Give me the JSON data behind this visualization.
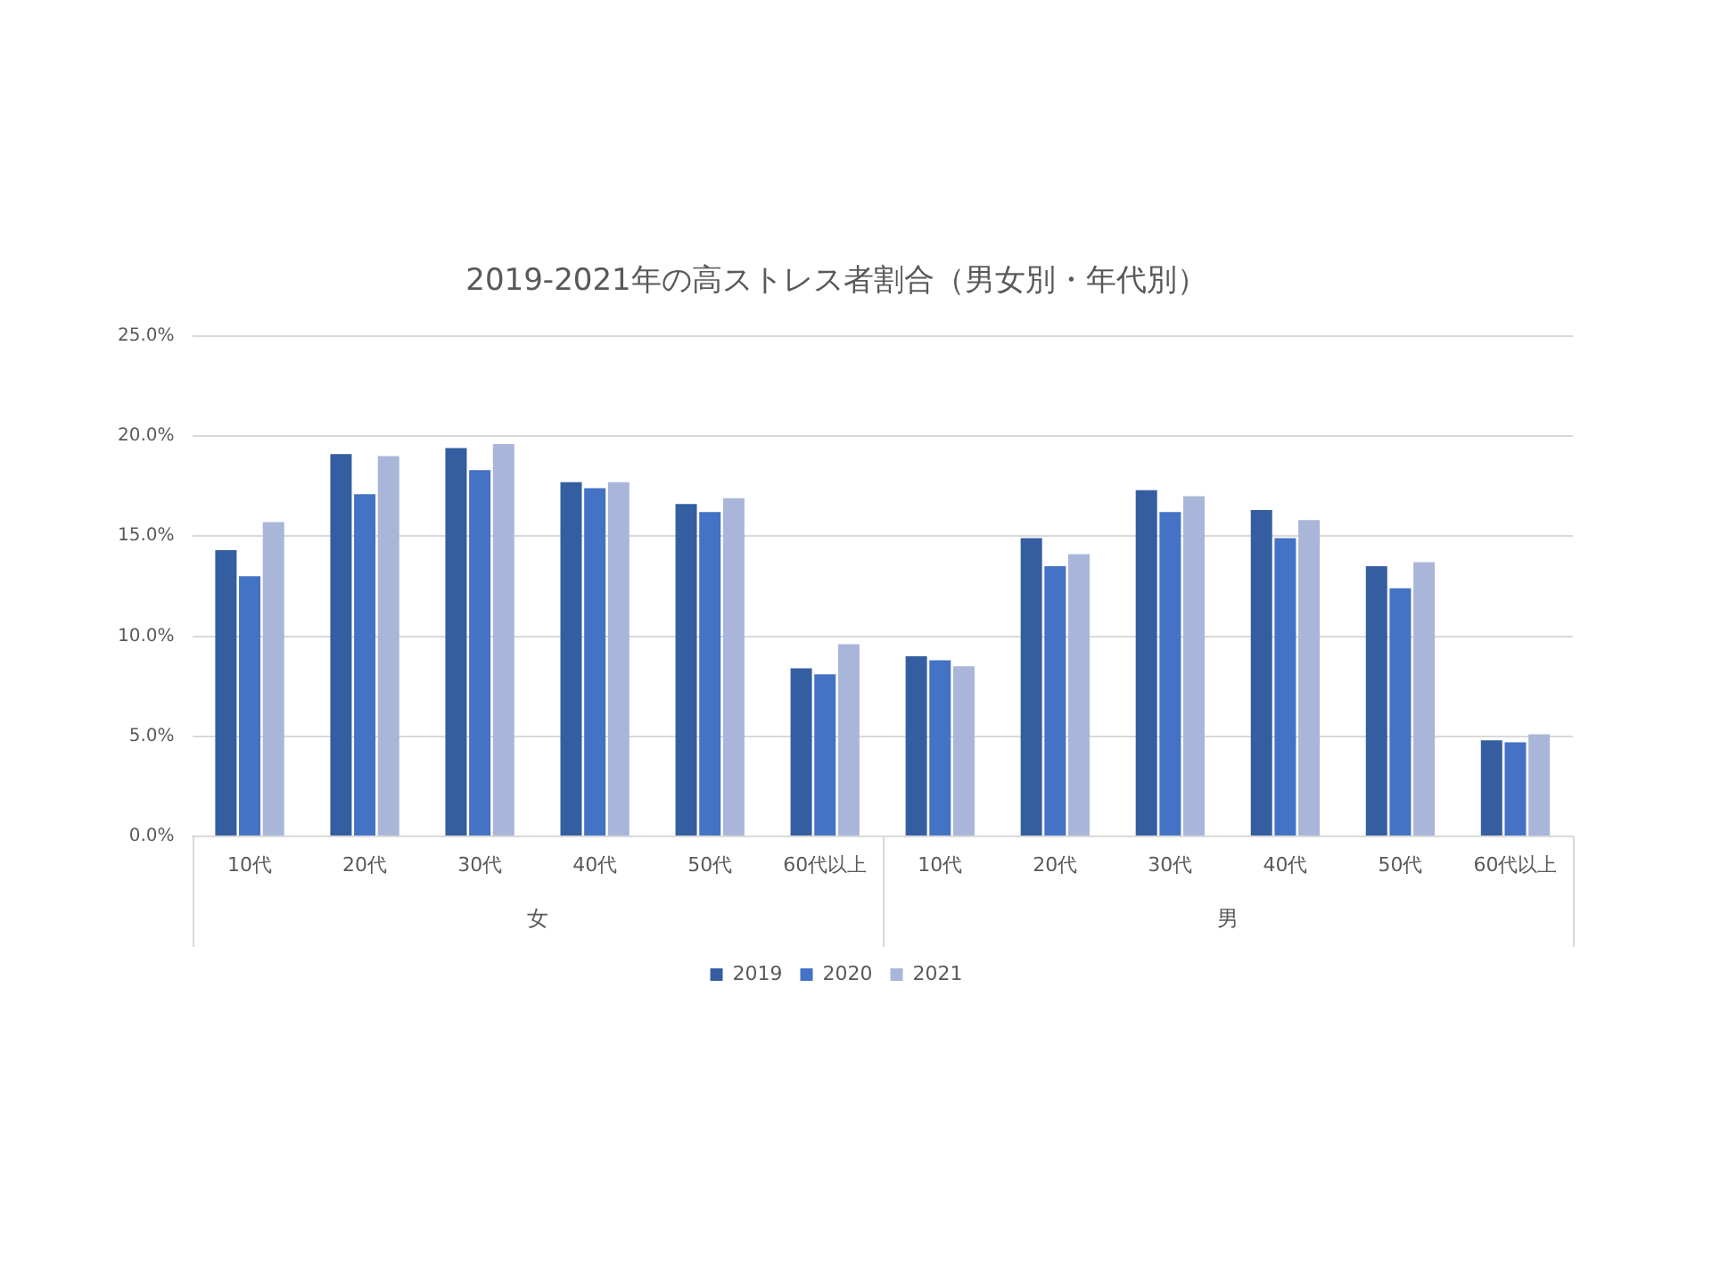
{
  "chart_data": {
    "type": "bar",
    "title": "2019-2021年の高ストレス者割合（男女別・年代別）",
    "categories": [
      "10代",
      "20代",
      "30代",
      "40代",
      "50代",
      "60代以上",
      "10代",
      "20代",
      "30代",
      "40代",
      "50代",
      "60代以上"
    ],
    "annotations": [
      "女",
      "男"
    ],
    "series": [
      {
        "name": "2019",
        "color": "#355ea0",
        "values": [
          14.3,
          19.1,
          19.4,
          17.7,
          16.6,
          8.4,
          9.0,
          14.9,
          17.3,
          16.3,
          13.5,
          4.8
        ]
      },
      {
        "name": "2020",
        "color": "#4472c4",
        "values": [
          13.0,
          17.1,
          18.3,
          17.4,
          16.2,
          8.1,
          8.8,
          13.5,
          16.2,
          14.9,
          12.4,
          4.7
        ]
      },
      {
        "name": "2021",
        "color": "#a9b6da",
        "values": [
          15.7,
          19.0,
          19.6,
          17.7,
          16.9,
          9.6,
          8.5,
          14.1,
          17.0,
          15.8,
          13.7,
          5.1
        ]
      }
    ],
    "ylim": [
      0,
      25
    ],
    "yticks": [
      {
        "value": 0,
        "label": "0.0%"
      },
      {
        "value": 5,
        "label": "5.0%"
      },
      {
        "value": 10,
        "label": "10.0%"
      },
      {
        "value": 15,
        "label": "15.0%"
      },
      {
        "value": 20,
        "label": "20.0%"
      },
      {
        "value": 25,
        "label": "25.0%"
      }
    ],
    "grid": "y",
    "legend": "bottom"
  }
}
